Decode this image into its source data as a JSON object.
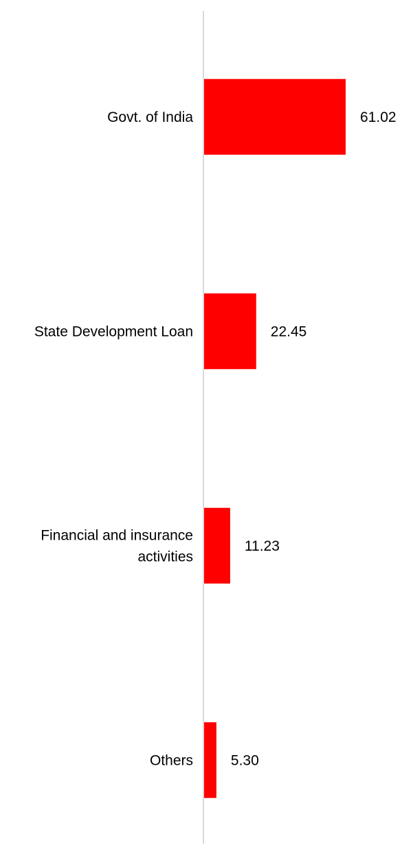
{
  "colors": {
    "bar": "#ff0000",
    "axis": "#d9d9d9",
    "text": "#000000"
  },
  "chart_data": {
    "type": "bar",
    "orientation": "horizontal",
    "categories": [
      "Govt. of India",
      "State Development Loan",
      "Financial and insurance activities",
      "Others"
    ],
    "values": [
      61.02,
      22.45,
      11.23,
      5.3
    ],
    "value_labels": [
      "61.02",
      "22.45",
      "11.23",
      "5.30"
    ],
    "title": "",
    "xlabel": "",
    "ylabel": "",
    "xlim": [
      0,
      70
    ],
    "grid": false,
    "legend": "none"
  }
}
